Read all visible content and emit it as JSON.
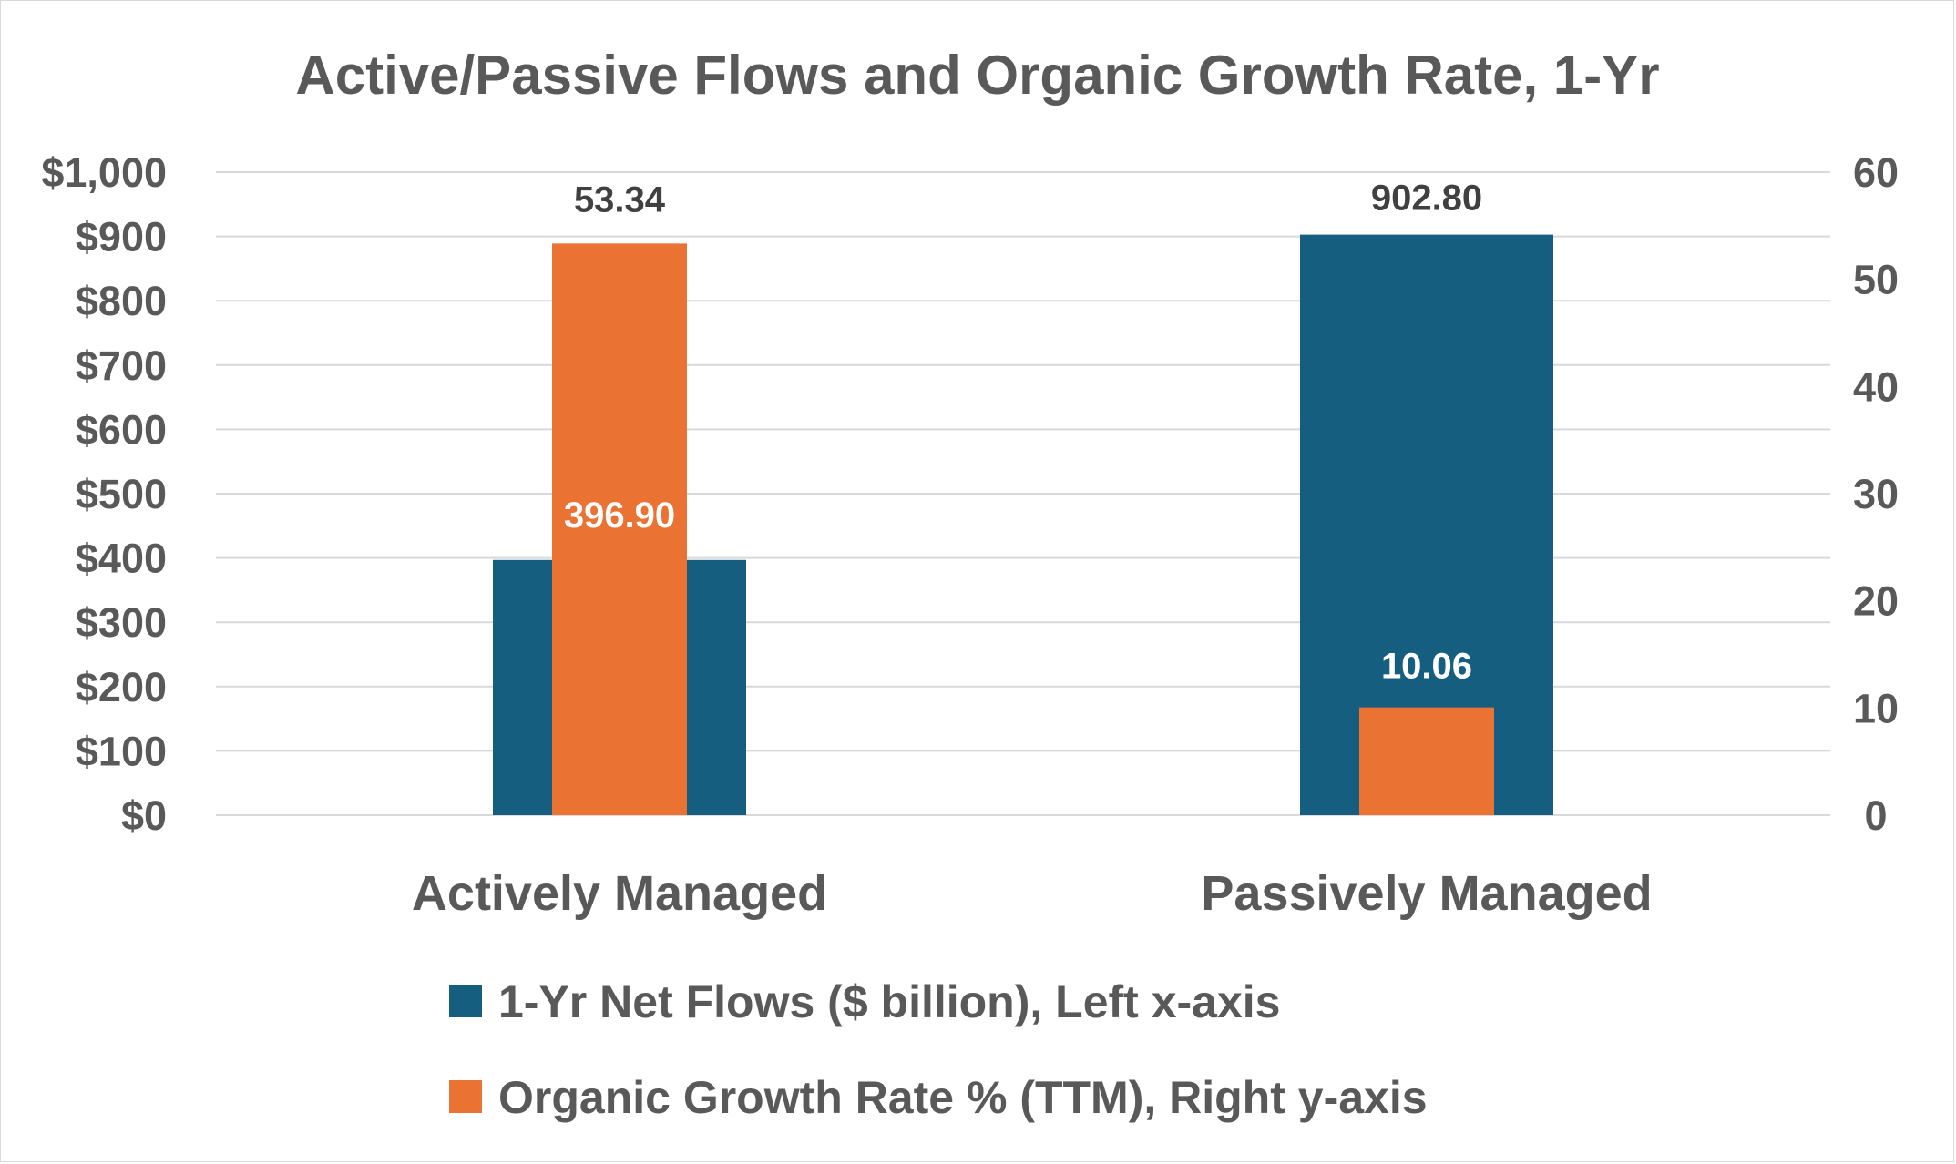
{
  "colors": {
    "net_flows": "#165e80",
    "growth_rate": "#ea7232",
    "text": "#595959",
    "data_label_dark": "#404040",
    "data_label_light": "#ffffff",
    "grid": "#d9d9d9"
  },
  "chart_data": {
    "type": "bar",
    "title": "Active/Passive Flows and Organic Growth Rate, 1-Yr",
    "categories": [
      "Actively Managed",
      "Passively Managed"
    ],
    "series": [
      {
        "name": "1-Yr Net Flows ($ billion), Left x-axis",
        "axis": "left",
        "values": [
          396.9,
          902.8
        ],
        "labels": [
          "396.90",
          "902.80"
        ]
      },
      {
        "name": "Organic Growth Rate % (TTM), Right y-axis",
        "axis": "right",
        "values": [
          53.34,
          10.06
        ],
        "labels": [
          "53.34",
          "10.06"
        ]
      }
    ],
    "y_left": {
      "lim": [
        0,
        1000
      ],
      "ticks": [
        0,
        100,
        200,
        300,
        400,
        500,
        600,
        700,
        800,
        900,
        1000
      ],
      "tick_labels": [
        "$0",
        "$100",
        "$200",
        "$300",
        "$400",
        "$500",
        "$600",
        "$700",
        "$800",
        "$900",
        "$1,000"
      ]
    },
    "y_right": {
      "lim": [
        0,
        60
      ],
      "ticks": [
        0,
        10,
        20,
        30,
        40,
        50,
        60
      ],
      "tick_labels": [
        "0",
        "10",
        "20",
        "30",
        "40",
        "50",
        "60"
      ]
    },
    "grid": true,
    "legend_position": "bottom",
    "xlabel": "",
    "ylabel": ""
  }
}
